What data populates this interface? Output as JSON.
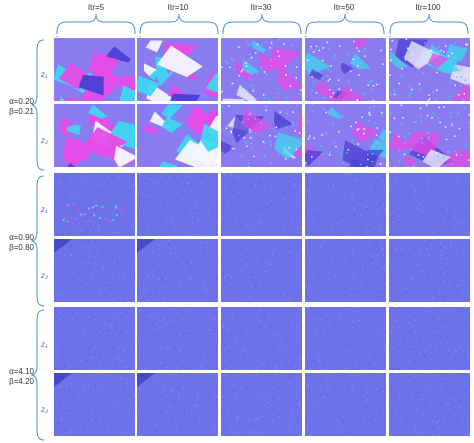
{
  "columns": [
    "Itr=5",
    "Itr=10",
    "Itr=30",
    "Itr=50",
    "Itr=100"
  ],
  "groups": [
    {
      "alpha": "α=0.20",
      "beta": "β=0.21",
      "z1": "z₁",
      "z2": "z₂",
      "style": "structured"
    },
    {
      "alpha": "α=0.90",
      "beta": "β=0.80",
      "z1": "z₁",
      "z2": "z₂",
      "style": "noise-speckle"
    },
    {
      "alpha": "α=4.10",
      "beta": "β=4.20",
      "z1": "z₁",
      "z2": "z₂",
      "style": "noise"
    }
  ],
  "colors": {
    "bracket": "#4a8fd8",
    "noise_base": "#6e72e8",
    "magenta": "#e54be6",
    "cyan": "#3fd6f0",
    "white": "#f4f6ff"
  }
}
